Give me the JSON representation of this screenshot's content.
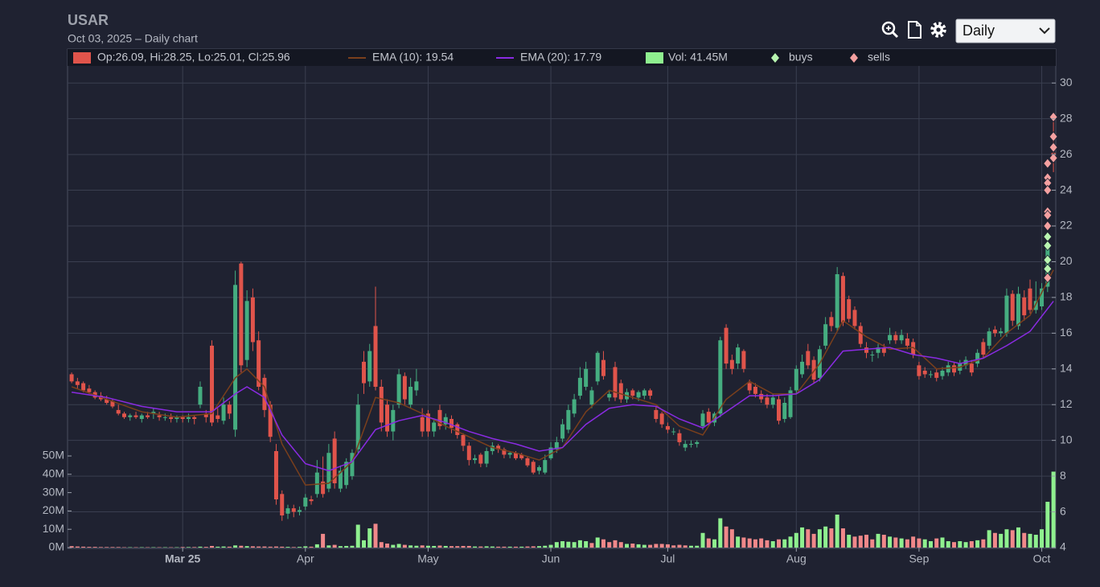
{
  "toolbar": {
    "interval": "Daily"
  },
  "chart_data": {
    "type": "candlestick",
    "title": "USAR",
    "subtitle": "Oct 03, 2025 – Daily chart",
    "legend": {
      "ohlc": "Op:26.09, Hi:28.25, Lo:25.01, Cl:25.96",
      "volume": "Vol: 41.45M"
    },
    "colors": {
      "up": "#45ad80",
      "down": "#e0544b",
      "volume_up": "#8ff08f",
      "volume_down": "#f0888a"
    },
    "open": [
      13.7,
      13.3,
      13.2,
      12.9,
      12.7,
      12.5,
      12.3,
      12.2,
      11.7,
      11.5,
      11.3,
      11.4,
      11.2,
      11.4,
      11.5,
      11.4,
      11.3,
      11.3,
      11.2,
      11.3,
      11.2,
      11.3,
      12.0,
      11.5,
      15.3,
      11.4,
      11.1,
      12.0,
      10.6,
      19.9,
      14.5,
      18.0,
      15.6,
      13.5,
      12.0,
      9.4,
      7.0,
      5.9,
      6.2,
      6.0,
      6.3,
      6.7,
      7.0,
      7.7,
      7.3,
      10.1,
      7.3,
      7.5,
      8.0,
      9.5,
      14.4,
      13.3,
      16.4,
      13.0,
      12.0,
      10.5,
      12.0,
      13.6,
      12.0,
      12.8,
      11.3,
      11.5,
      10.5,
      11.7,
      10.9,
      11.2,
      10.9,
      10.3,
      9.7,
      8.9,
      9.2,
      8.7,
      9.4,
      9.7,
      9.5,
      9.2,
      9.3,
      9.2,
      9.0,
      8.8,
      8.3,
      8.2,
      9.0,
      9.5,
      10.1,
      10.6,
      11.5,
      12.5,
      13.0,
      12.0,
      13.3,
      14.5,
      12.4,
      14.1,
      13.2,
      12.3,
      12.8,
      12.4,
      12.5,
      12.8,
      11.7,
      11.5,
      10.8,
      10.5,
      10.4,
      9.6,
      9.8,
      9.8,
      10.8,
      11.6,
      11.0,
      11.5,
      16.3,
      14.5,
      14.3,
      15.0,
      13.2,
      13.0,
      12.6,
      12.4,
      12.0,
      12.3,
      11.2,
      11.3,
      12.8,
      13.7,
      15.0,
      14.5,
      13.5,
      15.3,
      16.9,
      16.3,
      19.2,
      17.9,
      17.3,
      16.4,
      15.2,
      14.8,
      14.9,
      15.2,
      15.6,
      15.9,
      15.6,
      15.7,
      15.5,
      14.2,
      13.9,
      13.7,
      13.8,
      13.6,
      13.8,
      14.2,
      13.9,
      14.2,
      14.3,
      14.3,
      15.5,
      15.3,
      16.2,
      16.0,
      16.0,
      18.2,
      16.4,
      18.0,
      18.5,
      17.3,
      17.5,
      18.6,
      26.09
    ],
    "high": [
      13.8,
      13.5,
      13.3,
      13.1,
      12.8,
      12.7,
      12.5,
      12.3,
      12.0,
      11.6,
      11.5,
      11.6,
      11.5,
      11.6,
      11.8,
      11.6,
      11.5,
      11.5,
      11.4,
      11.4,
      11.5,
      11.4,
      13.3,
      11.7,
      15.6,
      11.8,
      12.4,
      12.2,
      19.5,
      20.0,
      18.4,
      18.5,
      16.1,
      13.7,
      12.2,
      9.8,
      7.2,
      6.4,
      6.4,
      6.3,
      7.0,
      6.9,
      8.9,
      9.1,
      9.8,
      10.5,
      8.6,
      9.0,
      9.5,
      12.6,
      15.0,
      15.4,
      18.6,
      13.4,
      12.3,
      12.0,
      14.0,
      13.8,
      13.5,
      14.0,
      11.8,
      11.7,
      11.2,
      12.0,
      11.5,
      11.4,
      11.0,
      10.4,
      9.9,
      9.2,
      9.3,
      9.6,
      9.9,
      9.8,
      9.6,
      9.4,
      9.4,
      9.3,
      9.1,
      8.9,
      8.6,
      9.2,
      9.9,
      10.2,
      11.2,
      12.0,
      12.6,
      14.1,
      14.4,
      13.0,
      15.0,
      15.0,
      12.8,
      14.4,
      13.4,
      12.9,
      12.9,
      12.8,
      12.9,
      12.9,
      11.9,
      11.6,
      11.0,
      10.7,
      10.6,
      10.0,
      10.0,
      10.0,
      11.7,
      11.8,
      11.6,
      15.8,
      16.5,
      14.8,
      15.4,
      15.1,
      13.4,
      13.2,
      12.8,
      12.6,
      12.6,
      12.5,
      12.4,
      13.0,
      14.2,
      14.8,
      15.4,
      14.7,
      15.3,
      16.9,
      17.2,
      19.7,
      19.4,
      18.1,
      17.5,
      16.6,
      15.5,
      15.0,
      15.4,
      15.4,
      16.3,
      16.1,
      16.2,
      16.0,
      15.7,
      14.4,
      14.1,
      13.9,
      14.0,
      14.1,
      14.4,
      14.4,
      14.5,
      14.7,
      14.5,
      15.1,
      15.7,
      16.3,
      16.4,
      16.3,
      18.5,
      18.4,
      18.6,
      18.4,
      19.0,
      18.9,
      18.8,
      21.5,
      28.25
    ],
    "low": [
      13.2,
      12.9,
      12.7,
      12.6,
      12.3,
      12.2,
      12.0,
      11.8,
      11.4,
      11.2,
      11.1,
      11.2,
      11.0,
      11.2,
      11.2,
      11.1,
      11.1,
      11.0,
      11.0,
      11.0,
      11.0,
      10.9,
      11.8,
      11.0,
      10.8,
      11.0,
      10.9,
      11.2,
      10.2,
      13.8,
      14.1,
      15.0,
      12.8,
      11.3,
      9.9,
      6.4,
      5.5,
      5.6,
      5.7,
      5.8,
      6.1,
      6.4,
      6.8,
      6.8,
      7.1,
      7.3,
      7.1,
      7.3,
      7.8,
      9.3,
      12.6,
      13.0,
      12.8,
      10.5,
      10.2,
      10.0,
      11.8,
      12.0,
      11.8,
      12.5,
      10.2,
      10.2,
      10.2,
      10.6,
      10.6,
      10.4,
      10.1,
      9.4,
      8.6,
      8.7,
      8.5,
      8.5,
      9.2,
      9.3,
      9.0,
      9.0,
      8.9,
      8.9,
      8.5,
      8.1,
      8.1,
      8.1,
      8.9,
      9.3,
      9.9,
      10.4,
      11.3,
      12.3,
      12.8,
      11.8,
      13.1,
      13.4,
      12.2,
      12.2,
      12.1,
      12.1,
      12.3,
      12.2,
      12.3,
      12.3,
      11.0,
      10.7,
      10.4,
      10.3,
      9.7,
      9.4,
      9.6,
      9.6,
      10.6,
      10.8,
      10.8,
      11.3,
      14.0,
      13.7,
      14.0,
      13.8,
      12.6,
      12.4,
      12.1,
      11.8,
      11.8,
      10.9,
      11.0,
      11.2,
      12.6,
      13.5,
      14.0,
      13.2,
      13.3,
      15.1,
      16.1,
      16.1,
      16.4,
      16.6,
      16.2,
      15.2,
      14.6,
      14.4,
      14.6,
      14.7,
      15.4,
      15.4,
      15.4,
      15.1,
      14.6,
      13.4,
      13.5,
      13.5,
      13.3,
      13.4,
      13.6,
      13.6,
      13.7,
      14.0,
      13.6,
      14.1,
      14.6,
      15.1,
      15.8,
      15.8,
      15.8,
      16.4,
      16.2,
      16.7,
      17.1,
      17.1,
      17.3,
      18.3,
      25.01
    ],
    "close": [
      13.3,
      13.1,
      12.8,
      12.7,
      12.4,
      12.3,
      12.1,
      11.9,
      11.5,
      11.3,
      11.4,
      11.3,
      11.4,
      11.3,
      11.6,
      11.3,
      11.3,
      11.2,
      11.3,
      11.2,
      11.3,
      11.2,
      13.0,
      11.3,
      11.0,
      11.2,
      12.0,
      11.5,
      18.7,
      14.2,
      17.8,
      15.5,
      13.0,
      11.7,
      10.2,
      6.7,
      5.8,
      6.2,
      6.0,
      6.1,
      6.8,
      6.6,
      8.2,
      7.0,
      9.3,
      7.6,
      8.3,
      8.8,
      9.3,
      12.0,
      13.2,
      15.0,
      13.0,
      11.0,
      10.5,
      11.7,
      13.7,
      12.3,
      13.0,
      13.3,
      10.5,
      10.5,
      11.0,
      10.8,
      11.3,
      10.7,
      10.3,
      9.7,
      8.9,
      9.0,
      8.7,
      9.4,
      9.7,
      9.5,
      9.2,
      9.3,
      9.0,
      9.0,
      8.6,
      8.2,
      8.5,
      8.9,
      9.6,
      9.9,
      10.9,
      11.7,
      12.3,
      13.5,
      14.0,
      12.8,
      14.9,
      13.6,
      12.6,
      12.4,
      12.3,
      12.7,
      12.5,
      12.7,
      12.8,
      12.5,
      11.2,
      10.9,
      10.6,
      10.5,
      9.9,
      9.8,
      9.8,
      9.9,
      11.5,
      11.0,
      11.5,
      15.6,
      14.3,
      14.0,
      15.2,
      14.0,
      12.8,
      12.6,
      12.3,
      12.0,
      12.4,
      11.1,
      12.1,
      12.8,
      14.0,
      14.4,
      14.2,
      13.4,
      15.1,
      16.5,
      16.4,
      19.3,
      16.6,
      16.8,
      16.4,
      15.4,
      14.9,
      14.8,
      15.2,
      14.9,
      15.9,
      15.6,
      15.9,
      15.3,
      14.8,
      13.6,
      13.7,
      13.7,
      13.5,
      13.9,
      14.2,
      13.8,
      14.3,
      14.5,
      13.8,
      14.9,
      14.8,
      16.1,
      16.0,
      16.1,
      18.1,
      16.7,
      18.2,
      17.0,
      17.3,
      17.8,
      18.5,
      20.8,
      25.96
    ],
    "volume": [
      0.8,
      0.6,
      0.5,
      0.4,
      0.4,
      0.3,
      0.3,
      0.3,
      0.3,
      0.2,
      0.2,
      0.2,
      0.2,
      0.2,
      0.2,
      0.2,
      0.2,
      0.2,
      0.2,
      0.3,
      0.3,
      0.3,
      0.5,
      0.4,
      0.9,
      0.5,
      0.6,
      0.5,
      1.2,
      1.0,
      0.8,
      0.7,
      0.6,
      0.6,
      0.5,
      0.6,
      0.5,
      0.4,
      0.3,
      0.4,
      0.7,
      0.5,
      1.8,
      7.5,
      1.2,
      1.5,
      0.8,
      0.9,
      1.0,
      12.5,
      4.0,
      10.5,
      13.0,
      3.0,
      2.2,
      1.5,
      2.0,
      1.5,
      1.2,
      1.0,
      1.2,
      1.0,
      0.9,
      1.1,
      0.9,
      0.8,
      0.8,
      0.9,
      0.9,
      0.6,
      0.6,
      0.7,
      0.6,
      0.5,
      0.5,
      0.5,
      0.5,
      0.5,
      0.6,
      0.7,
      0.8,
      1.0,
      1.5,
      3.0,
      3.5,
      3.2,
      3.0,
      4.0,
      3.5,
      2.5,
      5.5,
      4.5,
      3.0,
      4.0,
      3.0,
      2.0,
      2.2,
      1.8,
      1.5,
      1.5,
      2.0,
      2.0,
      1.8,
      1.2,
      1.5,
      1.2,
      1.0,
      1.0,
      8.0,
      5.0,
      4.5,
      16.0,
      11.5,
      10.0,
      6.0,
      5.5,
      5.0,
      4.5,
      5.0,
      4.0,
      3.5,
      4.5,
      4.5,
      6.0,
      8.0,
      11.0,
      10.0,
      7.5,
      10.0,
      11.5,
      10.5,
      18.0,
      10.5,
      7.0,
      6.0,
      6.5,
      7.0,
      4.5,
      7.5,
      7.0,
      6.0,
      5.5,
      5.0,
      4.5,
      6.0,
      5.0,
      4.5,
      3.5,
      5.0,
      5.5,
      3.5,
      3.0,
      3.5,
      3.0,
      3.5,
      4.0,
      4.5,
      9.5,
      8.0,
      7.5,
      10.0,
      9.5,
      11.0,
      8.0,
      7.5,
      7.0,
      10.0,
      25.0,
      41.45
    ],
    "xlim": [
      -0.7,
      168.4
    ],
    "xticks": [
      {
        "value": 19,
        "label": "Mar 25"
      },
      {
        "value": 40,
        "label": "Apr"
      },
      {
        "value": 61,
        "label": "May"
      },
      {
        "value": 82,
        "label": "Jun"
      },
      {
        "value": 102,
        "label": "Jul"
      },
      {
        "value": 124,
        "label": "Aug"
      },
      {
        "value": 145,
        "label": "Sep"
      },
      {
        "value": 166,
        "label": "Oct"
      }
    ],
    "ylim": [
      4,
      31.9
    ],
    "yticks": [
      4,
      6,
      8,
      10,
      12,
      14,
      16,
      18,
      20,
      22,
      24,
      26,
      28,
      30
    ],
    "y2lim": [
      0,
      272
    ],
    "y2ticks": [
      {
        "value": 0,
        "label": "0M"
      },
      {
        "value": 10,
        "label": "10M"
      },
      {
        "value": 20,
        "label": "20M"
      },
      {
        "value": 30,
        "label": "30M"
      },
      {
        "value": 40,
        "label": "40M"
      },
      {
        "value": 50,
        "label": "50M"
      }
    ],
    "grid": true,
    "lines": [
      {
        "name": "EMA (10): 19.54",
        "color": "#7a3f1c",
        "x": [
          0,
          6,
          12,
          18,
          24,
          28,
          30,
          33,
          36,
          40,
          44,
          48,
          52,
          56,
          60,
          64,
          68,
          72,
          76,
          80,
          84,
          88,
          92,
          96,
          100,
          104,
          108,
          112,
          116,
          120,
          124,
          128,
          132,
          136,
          140,
          144,
          148,
          152,
          156,
          160,
          164,
          168
        ],
        "values": [
          13.0,
          12.3,
          11.6,
          11.3,
          11.5,
          13.5,
          14.0,
          13.0,
          9.8,
          7.5,
          7.6,
          8.8,
          12.4,
          12.1,
          11.5,
          10.8,
          10.2,
          9.6,
          9.3,
          8.9,
          9.6,
          11.6,
          12.8,
          12.4,
          12.0,
          10.8,
          10.3,
          12.3,
          13.3,
          12.6,
          12.6,
          14.3,
          16.7,
          15.8,
          15.1,
          15.2,
          14.0,
          14.1,
          14.6,
          16.0,
          17.0,
          19.54
        ]
      },
      {
        "name": "EMA (20): 17.79",
        "color": "#8a2be2",
        "x": [
          0,
          6,
          12,
          18,
          24,
          28,
          30,
          33,
          36,
          40,
          44,
          48,
          52,
          56,
          60,
          64,
          68,
          72,
          76,
          80,
          84,
          88,
          92,
          96,
          100,
          104,
          108,
          112,
          116,
          120,
          124,
          128,
          132,
          136,
          140,
          144,
          148,
          152,
          156,
          160,
          164,
          168
        ],
        "values": [
          12.7,
          12.4,
          11.9,
          11.6,
          11.6,
          12.6,
          13.0,
          12.4,
          10.3,
          8.7,
          8.3,
          8.8,
          10.6,
          11.1,
          11.4,
          11.0,
          10.5,
          10.1,
          9.8,
          9.4,
          9.6,
          10.9,
          11.8,
          12.0,
          11.9,
          11.2,
          10.7,
          11.6,
          12.5,
          12.5,
          12.6,
          13.4,
          15.0,
          15.1,
          15.2,
          14.8,
          14.6,
          14.3,
          14.6,
          15.3,
          16.1,
          17.79
        ]
      }
    ],
    "markers": [
      {
        "name": "buys",
        "color": "#b8f5b0",
        "x": [
          167,
          167,
          167,
          167
        ],
        "values": [
          21.4,
          20.9,
          20.1,
          19.6
        ]
      },
      {
        "name": "sells",
        "color": "#f4a0a0",
        "x": [
          168,
          168,
          168,
          168,
          167,
          167,
          167,
          167,
          167,
          167,
          167,
          167
        ],
        "values": [
          28.1,
          27.0,
          26.4,
          25.8,
          25.5,
          24.7,
          24.4,
          24.0,
          22.8,
          22.6,
          22.0,
          19.1
        ]
      }
    ]
  }
}
